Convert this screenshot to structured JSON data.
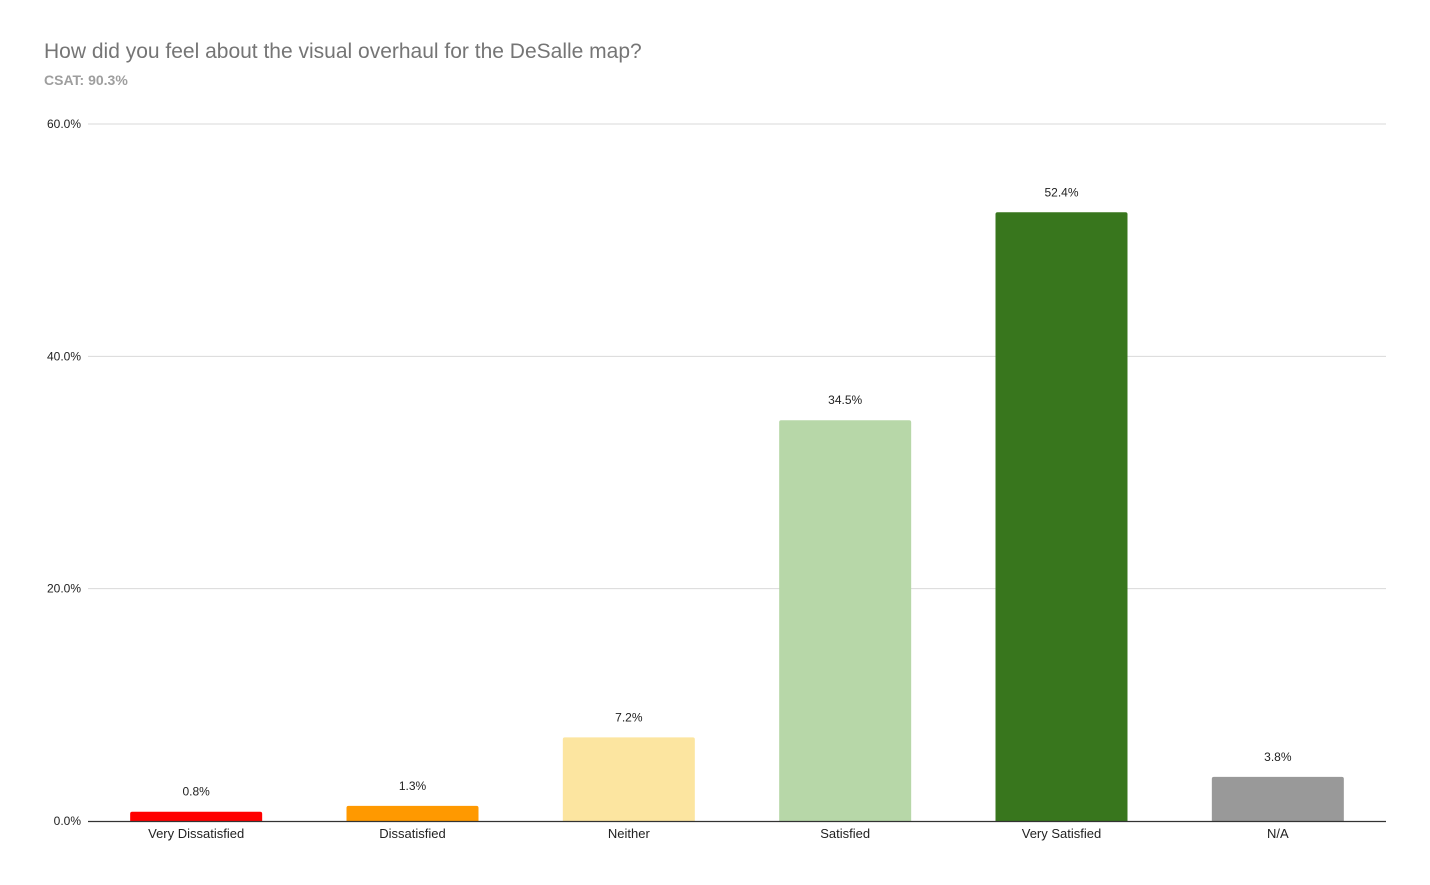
{
  "chart_data": {
    "type": "bar",
    "title": "How did you feel about the visual overhaul for the DeSalle map?",
    "subtitle": "CSAT: 90.3%",
    "xlabel": "",
    "ylabel": "",
    "ylim": [
      0,
      60
    ],
    "yticks": [
      "0.0%",
      "20.0%",
      "40.0%",
      "60.0%"
    ],
    "ytick_values": [
      0,
      20,
      40,
      60
    ],
    "grid": true,
    "legend": "none",
    "categories": [
      "Very Dissatisfied",
      "Dissatisfied",
      "Neither",
      "Satisfied",
      "Very Satisfied",
      "N/A"
    ],
    "values": [
      0.8,
      1.3,
      7.2,
      34.5,
      52.4,
      3.8
    ],
    "data_labels": [
      "0.8%",
      "1.3%",
      "7.2%",
      "34.5%",
      "52.4%",
      "3.8%"
    ],
    "colors": [
      "#ff0000",
      "#ff9900",
      "#fce5a0",
      "#b7d7a8",
      "#38761d",
      "#999999"
    ]
  }
}
